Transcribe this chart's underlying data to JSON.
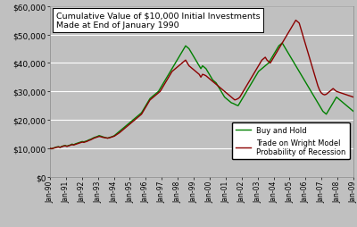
{
  "title_line1": "Cumulative Value of $10,000 Initial Investments",
  "title_line2": "Made at End of January 1990",
  "background_color": "#c0c0c0",
  "plot_bg_color": "#c0c0c0",
  "grid_color": "#ffffff",
  "ylim": [
    0,
    60000
  ],
  "yticks": [
    0,
    10000,
    20000,
    30000,
    40000,
    50000,
    60000
  ],
  "ytick_labels": [
    "$0",
    "$10,000",
    "$20,000",
    "$30,000",
    "$40,000",
    "$50,000",
    "$60,000"
  ],
  "x_labels": [
    "Jan-90",
    "Jan-91",
    "Jan-92",
    "Jan-93",
    "Jan-94",
    "Jan-95",
    "Jan-96",
    "Jan-97",
    "Jan-98",
    "Jan-99",
    "Jan-00",
    "Jan-01",
    "Jan-02",
    "Jan-03",
    "Jan-04",
    "Jan-05",
    "Jan-06",
    "Jan-07",
    "Jan-08",
    "Jan-09"
  ],
  "legend_bah": "Buy and Hold",
  "legend_wright": "Trade on Wright Model\nProbability of Recession",
  "color_bah": "#008000",
  "color_wright": "#8b0000",
  "line_width": 1.0,
  "buy_and_hold": [
    10000,
    9850,
    10100,
    10300,
    10500,
    10600,
    10400,
    10700,
    10900,
    11000,
    10800,
    11000,
    11200,
    11500,
    11300,
    11600,
    11800,
    12000,
    12200,
    12400,
    12300,
    12500,
    12700,
    13000,
    13200,
    13500,
    13800,
    14000,
    14200,
    14500,
    14300,
    14100,
    13900,
    13700,
    13600,
    13800,
    14000,
    14200,
    14500,
    15000,
    15500,
    16000,
    16500,
    17000,
    17500,
    18000,
    18500,
    19000,
    19500,
    20000,
    20500,
    21000,
    21500,
    22000,
    22500,
    23500,
    24500,
    25500,
    26500,
    27500,
    28000,
    28500,
    29000,
    29500,
    30000,
    31000,
    32000,
    33000,
    34000,
    35000,
    36000,
    37000,
    38000,
    39000,
    40000,
    41000,
    42000,
    43000,
    44000,
    45000,
    46000,
    45500,
    45000,
    44000,
    43000,
    42000,
    41000,
    40000,
    39000,
    38000,
    39000,
    38500,
    38000,
    37000,
    36000,
    35000,
    34000,
    33500,
    33000,
    32000,
    31000,
    30000,
    29000,
    28000,
    27500,
    27000,
    26500,
    26000,
    25800,
    25500,
    25200,
    25000,
    26000,
    27000,
    28000,
    29000,
    30000,
    31000,
    32000,
    33000,
    34000,
    35000,
    36000,
    37000,
    37500,
    38000,
    38500,
    39000,
    39500,
    40000,
    41000,
    42000,
    43000,
    44000,
    45000,
    46000,
    46500,
    47000,
    46000,
    45000,
    44000,
    43000,
    42000,
    41000,
    40000,
    39000,
    38000,
    37000,
    36000,
    35000,
    34000,
    33000,
    32000,
    31000,
    30000,
    29000,
    28000,
    27000,
    26000,
    25000,
    24000,
    23000,
    22500,
    22000,
    23000,
    24000,
    25000,
    26000,
    27000,
    28000,
    27500,
    27000,
    26500,
    26000,
    25500,
    25000,
    24500,
    24000,
    23500,
    23000
  ],
  "wright_model": [
    10000,
    9900,
    10050,
    10200,
    10400,
    10500,
    10350,
    10600,
    10800,
    10900,
    10700,
    10900,
    11100,
    11300,
    11200,
    11400,
    11600,
    11800,
    12000,
    12200,
    12100,
    12300,
    12500,
    12800,
    13000,
    13300,
    13600,
    13800,
    14000,
    14200,
    14100,
    13900,
    13800,
    13700,
    13600,
    13700,
    13900,
    14100,
    14300,
    14700,
    15100,
    15500,
    16000,
    16500,
    17000,
    17500,
    18000,
    18500,
    19000,
    19500,
    20000,
    20500,
    21000,
    21500,
    22000,
    23000,
    24000,
    25000,
    26000,
    27000,
    27500,
    28000,
    28500,
    29000,
    29500,
    30000,
    31000,
    32000,
    33000,
    34000,
    35000,
    36000,
    37000,
    37500,
    38000,
    38500,
    39000,
    39500,
    40000,
    40500,
    41000,
    40000,
    39000,
    38500,
    38000,
    37500,
    37000,
    36500,
    36000,
    35000,
    36000,
    35800,
    35500,
    35000,
    34500,
    34000,
    33500,
    33000,
    32500,
    32000,
    31500,
    31000,
    30500,
    30000,
    29500,
    29000,
    28500,
    28000,
    27500,
    27000,
    27200,
    27500,
    28000,
    29000,
    30000,
    31000,
    32000,
    33000,
    34000,
    35000,
    36000,
    37000,
    38000,
    39000,
    40000,
    41000,
    41500,
    42000,
    41000,
    40500,
    40000,
    41000,
    42000,
    43000,
    44000,
    45000,
    46000,
    47000,
    48000,
    49000,
    50000,
    51000,
    52000,
    53000,
    54000,
    55000,
    54500,
    54000,
    52000,
    50000,
    48000,
    46000,
    44000,
    42000,
    40000,
    38000,
    36000,
    34000,
    32000,
    30500,
    29500,
    29000,
    28800,
    29000,
    29500,
    30000,
    30500,
    31000,
    30500,
    30000,
    29800,
    29600,
    29400,
    29200,
    29000,
    28800,
    28600,
    28400,
    28200,
    28000
  ]
}
